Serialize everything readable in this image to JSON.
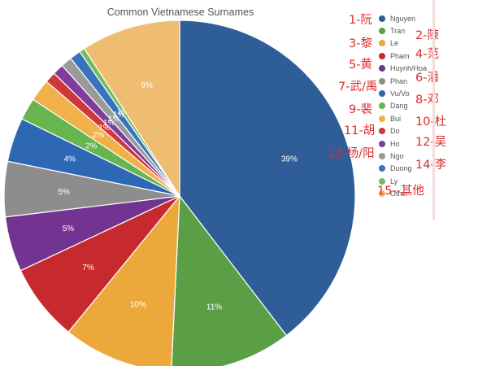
{
  "chart_data": {
    "type": "pie",
    "title": "Common Vietnamese Surnames",
    "start_angle_deg": 0,
    "direction": "clockwise",
    "legend_position": "right",
    "slices": [
      {
        "name": "Nguyen",
        "value": 39,
        "label": "39%",
        "color": "#2f5d97"
      },
      {
        "name": "Tran",
        "value": 11,
        "label": "11%",
        "color": "#5a9f46"
      },
      {
        "name": "Le",
        "value": 10,
        "label": "10%",
        "color": "#eda83c"
      },
      {
        "name": "Pham",
        "value": 7,
        "label": "7%",
        "color": "#c72a2e"
      },
      {
        "name": "Huynh/Hoang",
        "value": 5,
        "label": "5%",
        "color": "#733390"
      },
      {
        "name": "Phan",
        "value": 5,
        "label": "5%",
        "color": "#8d8d8d"
      },
      {
        "name": "Vu/Vo",
        "value": 4,
        "label": "4%",
        "color": "#2e67b3"
      },
      {
        "name": "Dang",
        "value": 2,
        "label": "2%",
        "color": "#67b54f"
      },
      {
        "name": "Bui",
        "value": 2,
        "label": "2%",
        "color": "#f0b04a"
      },
      {
        "name": "Do",
        "value": 1,
        "label": "1%",
        "color": "#cf3838"
      },
      {
        "name": "Ho",
        "value": 1,
        "label": "1%",
        "color": "#7e3d9c"
      },
      {
        "name": "Ngo",
        "value": 1,
        "label": "1%",
        "color": "#9a9a9a"
      },
      {
        "name": "Duong",
        "value": 1,
        "label": "1%",
        "color": "#3874be"
      },
      {
        "name": "Ly",
        "value": 0.5,
        "label": "1%",
        "color": "#74bd5c"
      },
      {
        "name": "Other",
        "value": 9,
        "label": "9%",
        "color": "#efbd72"
      }
    ]
  },
  "legend_visible_labels": [
    "Nguyen",
    "Tran",
    "Le",
    "Pham",
    "Huynh/Hoa",
    "Phan",
    "Vu/Vo",
    "Dang",
    "Bui",
    "Do",
    "Ho",
    "Ngo",
    "Duong",
    "Ly",
    "Other"
  ],
  "annotations": {
    "cn_1": "1-阮",
    "cn_2": "2-陳",
    "cn_3": "3-黎",
    "cn_4": "4-范",
    "cn_5": "5-黄",
    "cn_6": "6-潘",
    "cn_7": "7-武/禹",
    "cn_8": "8-邓",
    "cn_9": "9-裴",
    "cn_10": "10-杜",
    "cn_11": "11-胡",
    "cn_12": "12-吴",
    "cn_13": "13-杨/阳",
    "cn_14": "14-李",
    "cn_15": "15--其他"
  }
}
